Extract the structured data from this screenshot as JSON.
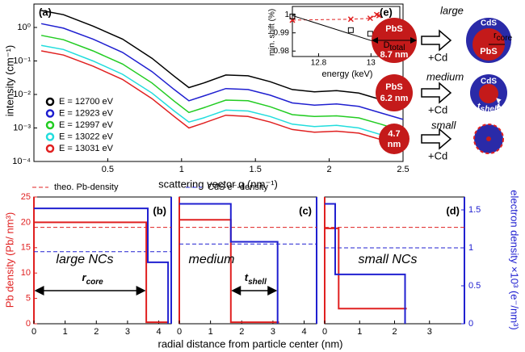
{
  "chart_data": [
    {
      "type": "line",
      "panel_label": "(a)",
      "x_label": "scattering vector q (nm⁻¹)",
      "y_label": "intensity (cm⁻¹)",
      "log_y": true,
      "xlim": [
        0,
        2.5
      ],
      "xticks": [
        0.5,
        1,
        1.5,
        2,
        2.5
      ],
      "ylim": [
        0.0001,
        5
      ],
      "yticks": [
        {
          "value": 0.0001,
          "label": "10⁻⁴"
        },
        {
          "value": 0.001,
          "label": "10⁻³"
        },
        {
          "value": 0.01,
          "label": "10⁻²"
        },
        {
          "value": 0.1,
          "label": "10⁻¹"
        },
        {
          "value": 1,
          "label": "10⁰"
        }
      ],
      "legend": "lower left",
      "x": [
        0.05,
        0.2,
        0.4,
        0.6,
        0.8,
        0.95,
        1.05,
        1.15,
        1.3,
        1.45,
        1.6,
        1.75,
        1.9,
        2.05,
        2.2,
        2.35,
        2.5
      ],
      "series": [
        {
          "name": "E = 12700 eV",
          "color": "#000000",
          "values": [
            3.2,
            2.4,
            1.1,
            0.45,
            0.12,
            0.035,
            0.016,
            0.022,
            0.038,
            0.036,
            0.024,
            0.014,
            0.012,
            0.013,
            0.011,
            0.007,
            0.0045
          ]
        },
        {
          "name": "E = 12923 eV",
          "color": "#1f1fd0",
          "values": [
            1.3,
            0.95,
            0.45,
            0.18,
            0.048,
            0.014,
            0.0065,
            0.009,
            0.015,
            0.014,
            0.0095,
            0.0056,
            0.0048,
            0.0052,
            0.0044,
            0.0028,
            0.0018
          ]
        },
        {
          "name": "E = 12997 eV",
          "color": "#22cc22",
          "values": [
            0.58,
            0.43,
            0.2,
            0.081,
            0.022,
            0.0063,
            0.0029,
            0.004,
            0.0068,
            0.0065,
            0.0043,
            0.0025,
            0.0022,
            0.0023,
            0.002,
            0.0013,
            0.0008
          ]
        },
        {
          "name": "E = 13022 eV",
          "color": "#22dddd",
          "values": [
            0.29,
            0.22,
            0.1,
            0.04,
            0.011,
            0.0032,
            0.0015,
            0.002,
            0.0034,
            0.0032,
            0.0022,
            0.0013,
            0.0011,
            0.0012,
            0.001,
            0.00063,
            0.0004
          ]
        },
        {
          "name": "E = 13031 eV",
          "color": "#e02020",
          "values": [
            0.2,
            0.15,
            0.07,
            0.028,
            0.0075,
            0.0022,
            0.001,
            0.0014,
            0.0024,
            0.0022,
            0.0015,
            0.0009,
            0.00075,
            0.0008,
            0.0007,
            0.00045,
            0.00028
          ]
        }
      ]
    },
    {
      "type": "line",
      "x_label": "energy (keV)",
      "y_label": "min. shift (%)",
      "xlim": [
        12.7,
        13.11
      ],
      "xticks": [
        12.8,
        13
      ],
      "ylim": [
        0.977,
        1.0045
      ],
      "yticks": [
        0.98,
        0.99,
        1
      ],
      "series": [
        {
          "color": "#e02020",
          "dashed": true,
          "marker": "x",
          "x": [
            12.7,
            12.923,
            12.997,
            13.022,
            13.031
          ],
          "values": [
            0.997,
            0.9975,
            0.998,
            1.0,
            0.9995
          ]
        },
        {
          "color": "#000000",
          "marker": "square",
          "x": [
            12.7,
            12.923,
            12.997,
            13.022,
            13.031
          ],
          "values": [
            0.999,
            0.9915,
            0.9895,
            0.988,
            0.985
          ]
        },
        {
          "color": "#000000",
          "x": [
            12.7,
            13.05
          ],
          "values": [
            0.9995,
            0.9835
          ]
        }
      ]
    },
    {
      "type": "line",
      "panel_label": "(b)",
      "y_label": "Pb density (Pb/ nm³)",
      "xlim": [
        0,
        4.4
      ],
      "xticks": [
        0,
        1,
        2,
        3,
        4
      ],
      "ylim": [
        0,
        25
      ],
      "yticks": [
        0,
        5,
        10,
        15,
        20,
        25
      ],
      "y2lim": [
        0,
        1.67
      ],
      "reference_lines": [
        {
          "name": "theo. Pb-density",
          "value": 19,
          "color": "#e02020"
        },
        {
          "value": 0.95,
          "axis": "y2",
          "color": "#2020d0"
        }
      ],
      "series": [
        {
          "color": "#e02020",
          "x": [
            0,
            3.6,
            3.6,
            4.3
          ],
          "values": [
            20,
            20,
            0.3,
            0.3
          ]
        },
        {
          "color": "#2020d0",
          "axis": "y2",
          "x": [
            0,
            3.65,
            3.65,
            4.3,
            4.3
          ],
          "values": [
            1.52,
            1.52,
            0.81,
            0.81,
            0
          ]
        }
      ],
      "annotations": [
        {
          "text": "large NCs"
        },
        {
          "main": "r",
          "sub": "core"
        }
      ]
    },
    {
      "type": "line",
      "panel_label": "(c)",
      "x_label": "radial distance from particle center (nm)",
      "xlim": [
        0,
        4.4
      ],
      "xticks": [
        0,
        1,
        2,
        3,
        4
      ],
      "ylim": [
        0,
        25
      ],
      "y2lim": [
        0,
        1.67
      ],
      "reference_lines": [
        {
          "value": 19,
          "color": "#e02020"
        },
        {
          "name": "CdS e⁻-density",
          "value": 1.05,
          "axis": "y2",
          "color": "#2020d0"
        }
      ],
      "series": [
        {
          "color": "#e02020",
          "x": [
            0,
            1.65,
            1.65,
            3.2
          ],
          "values": [
            20.5,
            20.5,
            0.3,
            0.3
          ]
        },
        {
          "color": "#2020d0",
          "axis": "y2",
          "x": [
            0,
            1.65,
            1.65,
            3.15,
            3.15
          ],
          "values": [
            1.58,
            1.58,
            1.08,
            1.08,
            0
          ]
        }
      ],
      "annotations": [
        {
          "text": "medium"
        },
        {
          "main": "t",
          "sub": "shell"
        }
      ]
    },
    {
      "type": "line",
      "panel_label": "(d)",
      "y2_label": "electron density ×10³ (e⁻/nm³)",
      "xlim": [
        0,
        4
      ],
      "xticks": [
        0,
        1,
        2,
        3
      ],
      "ylim": [
        0,
        25
      ],
      "y2lim": [
        0,
        1.67
      ],
      "y2ticks": [
        0,
        0.5,
        1,
        1.5
      ],
      "reference_lines": [
        {
          "value": 19,
          "color": "#e02020"
        },
        {
          "value": 1.0,
          "axis": "y2",
          "color": "#2020d0"
        }
      ],
      "series": [
        {
          "color": "#e02020",
          "x": [
            0,
            0.4,
            0.4,
            2.35
          ],
          "values": [
            18.8,
            18.8,
            3,
            3
          ]
        },
        {
          "color": "#2020d0",
          "axis": "y2",
          "x": [
            0,
            0.3,
            0.3,
            2.3,
            2.3
          ],
          "values": [
            1.58,
            1.58,
            0.65,
            0.65,
            0
          ]
        }
      ],
      "annotations": [
        {
          "text": "small NCs"
        }
      ]
    }
  ],
  "diagram": {
    "panel_label": "(e)",
    "large": {
      "label": "large",
      "core": "PbS",
      "diameter": {
        "main": "D",
        "sub": "total"
      },
      "size": "8.7 nm",
      "add": "+Cd",
      "shell": "CdS",
      "radius": {
        "main": "r",
        "sub": "core"
      },
      "core_after": "PbS"
    },
    "medium": {
      "label": "medium",
      "core": "PbS",
      "size": "6.2 nm",
      "add": "+Cd",
      "shell": "CdS",
      "thickness": {
        "main": "t",
        "sub": "shell"
      }
    },
    "small": {
      "label": "small",
      "size": "4.7",
      "unit": "nm",
      "add": "+Cd"
    }
  }
}
